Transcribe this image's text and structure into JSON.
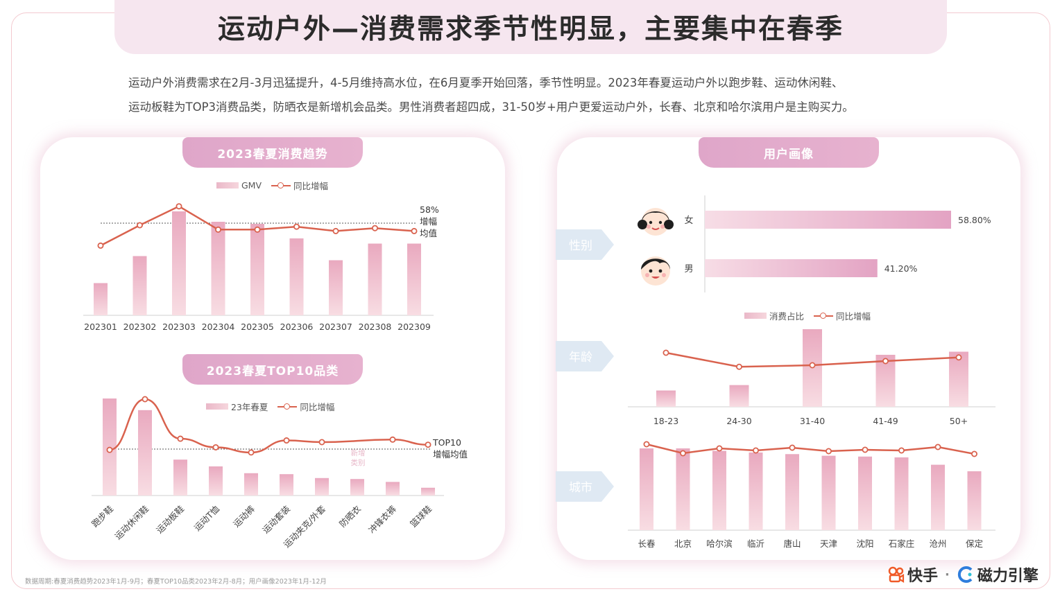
{
  "title": "运动户外—消费需求季节性明显，主要集中在春季",
  "intro_line1": "运动户外消费需求在2月-3月迅猛提升，4-5月维持高水位，在6月夏季开始回落，季节性明显。2023年春夏运动户外以跑步鞋、运动休闲鞋、",
  "intro_line2": "运动板鞋为TOP3消费品类，防晒衣是新增机会品类。男性消费者超四成，31-50岁+用户更爱运动户外，长春、北京和哈尔滨用户是主购买力。",
  "colors": {
    "bar": "#ecb7c7",
    "line": "#d9624e",
    "tab": "#e0a7ca",
    "accent_arrow": "#dfe9f3"
  },
  "trend": {
    "tab": "2023春夏消费趋势",
    "legend_bar": "GMV",
    "legend_line": "同比增幅",
    "avg_label": [
      "58%",
      "增幅",
      "均值"
    ]
  },
  "top10": {
    "tab": "2023春夏TOP10品类",
    "legend_bar": "23年春夏",
    "legend_line": "同比增幅",
    "avg_label": [
      "TOP10",
      "增幅均值"
    ],
    "new_label": [
      "新增",
      "类别"
    ]
  },
  "portrait": {
    "tab": "用户画像",
    "gender_btn": "性别",
    "age_btn": "年龄",
    "city_btn": "城市",
    "female_label": "女",
    "male_label": "男",
    "age_legend_bar": "消费占比",
    "age_legend_line": "同比增幅"
  },
  "footnote": "数据周期:春夏消费趋势2023年1月-9月；春夏TOP10品类2023年2月-8月；用户画像2023年1月-12月",
  "brand_kuaishou": "快手",
  "brand_sep": "·",
  "brand_cili": "磁力引擎",
  "chart_data": [
    {
      "type": "bar",
      "title": "2023春夏消费趋势",
      "categories": [
        "202301",
        "202302",
        "202303",
        "202304",
        "202305",
        "202306",
        "202307",
        "202308",
        "202309"
      ],
      "series": [
        {
          "name": "GMV",
          "type": "bar",
          "values": [
            0.31,
            0.57,
            1.0,
            0.9,
            0.88,
            0.74,
            0.53,
            0.69,
            0.69
          ]
        },
        {
          "name": "同比增幅",
          "type": "line",
          "values": [
            0.36,
            0.5,
            0.63,
            0.47,
            0.47,
            0.49,
            0.46,
            0.48,
            0.46
          ]
        }
      ],
      "reference_line": {
        "label": "58% 增幅 均值",
        "value": 0.49
      },
      "legend": "top-center"
    },
    {
      "type": "bar",
      "title": "2023春夏TOP10品类",
      "categories": [
        "跑步鞋",
        "运动休闲鞋",
        "运动板鞋",
        "运动T恤",
        "运动裤",
        "运动套装",
        "运动夹克/外套",
        "防晒衣",
        "冲锋衣裤",
        "篮球鞋"
      ],
      "series": [
        {
          "name": "23年春夏",
          "type": "bar",
          "values": [
            1.0,
            0.88,
            0.37,
            0.3,
            0.23,
            0.22,
            0.18,
            0.17,
            0.14,
            0.08
          ]
        },
        {
          "name": "同比增幅",
          "type": "line",
          "values": [
            0.41,
            1.0,
            0.54,
            0.44,
            0.38,
            0.52,
            0.5,
            null,
            0.53,
            0.47
          ]
        }
      ],
      "reference_line": {
        "label": "TOP10 增幅均值",
        "value": 0.55
      },
      "annotation": "新增类别",
      "legend": "top-center"
    },
    {
      "type": "bar",
      "title": "性别",
      "categories": [
        "女",
        "男"
      ],
      "values": [
        58.8,
        41.2
      ],
      "value_labels": [
        "58.80%",
        "41.20%"
      ],
      "orientation": "horizontal"
    },
    {
      "type": "bar",
      "title": "年龄",
      "categories": [
        "18-23",
        "24-30",
        "31-40",
        "41-49",
        "50+"
      ],
      "series": [
        {
          "name": "消费占比",
          "type": "bar",
          "values": [
            0.21,
            0.28,
            1.0,
            0.67,
            0.71
          ]
        },
        {
          "name": "同比增幅",
          "type": "line",
          "values": [
            0.76,
            0.49,
            0.52,
            0.6,
            0.67
          ]
        }
      ],
      "legend": "top-center"
    },
    {
      "type": "bar",
      "title": "城市",
      "categories": [
        "长春",
        "北京",
        "哈尔滨",
        "临沂",
        "唐山",
        "天津",
        "沈阳",
        "石家庄",
        "沧州",
        "保定"
      ],
      "series": [
        {
          "name": "消费占比",
          "type": "bar",
          "values": [
            1.0,
            1.0,
            0.97,
            0.95,
            0.93,
            0.91,
            0.9,
            0.89,
            0.8,
            0.72
          ]
        },
        {
          "name": "同比增幅",
          "type": "line",
          "values": [
            0.84,
            0.71,
            0.78,
            0.75,
            0.79,
            0.74,
            0.76,
            0.75,
            0.8,
            0.7
          ]
        }
      ]
    }
  ]
}
